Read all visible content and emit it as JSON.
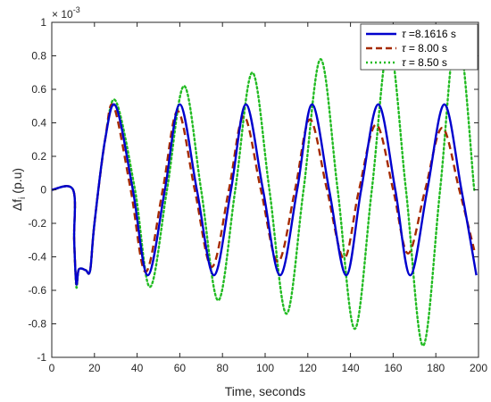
{
  "chart_data": {
    "type": "line",
    "title": "",
    "xlabel": "Time, seconds",
    "ylabel_main": "Δf",
    "ylabel_sub": "i",
    "ylabel_unit": " (p.u)",
    "y_multiplier": "× 10",
    "y_multiplier_exp": "-3",
    "xlim": [
      0,
      200
    ],
    "ylim": [
      -1,
      1
    ],
    "xticks": [
      "0",
      "20",
      "40",
      "60",
      "80",
      "100",
      "120",
      "140",
      "160",
      "180",
      "200"
    ],
    "yticks": [
      "-1",
      "-0.8",
      "-0.6",
      "-0.4",
      "-0.2",
      "0",
      "0.2",
      "0.4",
      "0.6",
      "0.8",
      "1"
    ],
    "grid": false,
    "legend_position": "top-right",
    "series": [
      {
        "name": "τ =8.1616 s",
        "name_symbol": "τ",
        "name_rest": " =8.1616 s",
        "color": "#0000cd",
        "style": "solid",
        "x": [
          0,
          10,
          10.5,
          11.5,
          12.5,
          14,
          16,
          18,
          20,
          25,
          30,
          38,
          45,
          53,
          60,
          68,
          76,
          84,
          91,
          99,
          107,
          115,
          122,
          130,
          138,
          145,
          153,
          161,
          168,
          176,
          184,
          192,
          199
        ],
        "y": [
          0,
          0,
          -0.3,
          -0.56,
          -0.48,
          -0.47,
          -0.48,
          -0.48,
          -0.2,
          0.3,
          0.5,
          0.0,
          -0.51,
          0.0,
          0.51,
          0.0,
          -0.51,
          0.0,
          0.51,
          0.0,
          -0.51,
          0.0,
          0.51,
          0.0,
          -0.51,
          0.0,
          0.51,
          0.0,
          -0.51,
          0.0,
          0.51,
          0.0,
          -0.51
        ]
      },
      {
        "name": "τ = 8.00 s",
        "name_symbol": "τ",
        "name_rest": " = 8.00 s",
        "color": "#a52a00",
        "style": "dashed",
        "x": [
          0,
          10,
          10.5,
          11.5,
          12.5,
          14,
          16,
          18,
          20,
          25,
          29,
          37,
          44,
          52,
          59,
          67,
          75,
          83,
          90,
          98,
          106,
          114,
          121,
          129,
          137,
          144,
          152,
          160,
          167,
          175,
          183,
          191,
          198
        ],
        "y": [
          0,
          0,
          -0.3,
          -0.56,
          -0.48,
          -0.47,
          -0.48,
          -0.48,
          -0.2,
          0.3,
          0.5,
          0.0,
          -0.49,
          0.0,
          0.47,
          0.0,
          -0.46,
          0.0,
          0.44,
          0.0,
          -0.43,
          0.0,
          0.42,
          0.0,
          -0.41,
          0.0,
          0.39,
          0.0,
          -0.38,
          0.0,
          0.37,
          0.0,
          -0.36
        ]
      },
      {
        "name": "τ = 8.50 s",
        "name_symbol": "τ",
        "name_rest": " = 8.50 s",
        "color": "#22bb22",
        "style": "dotted",
        "x": [
          0,
          10,
          10.5,
          11.5,
          12.5,
          14,
          16,
          18,
          20,
          25,
          30,
          39,
          46,
          54,
          62,
          70,
          78,
          86,
          94,
          102,
          110,
          118,
          126,
          134,
          142,
          150,
          158,
          166,
          174,
          182,
          190,
          198
        ],
        "y": [
          0,
          0,
          -0.3,
          -0.58,
          -0.48,
          -0.47,
          -0.48,
          -0.48,
          -0.2,
          0.3,
          0.53,
          0.0,
          -0.58,
          0.0,
          0.62,
          0.0,
          -0.66,
          0.0,
          0.7,
          0.0,
          -0.74,
          0.0,
          0.78,
          0.0,
          -0.83,
          0.0,
          0.87,
          0.0,
          -0.93,
          0.0,
          0.97,
          0.0
        ]
      }
    ]
  }
}
